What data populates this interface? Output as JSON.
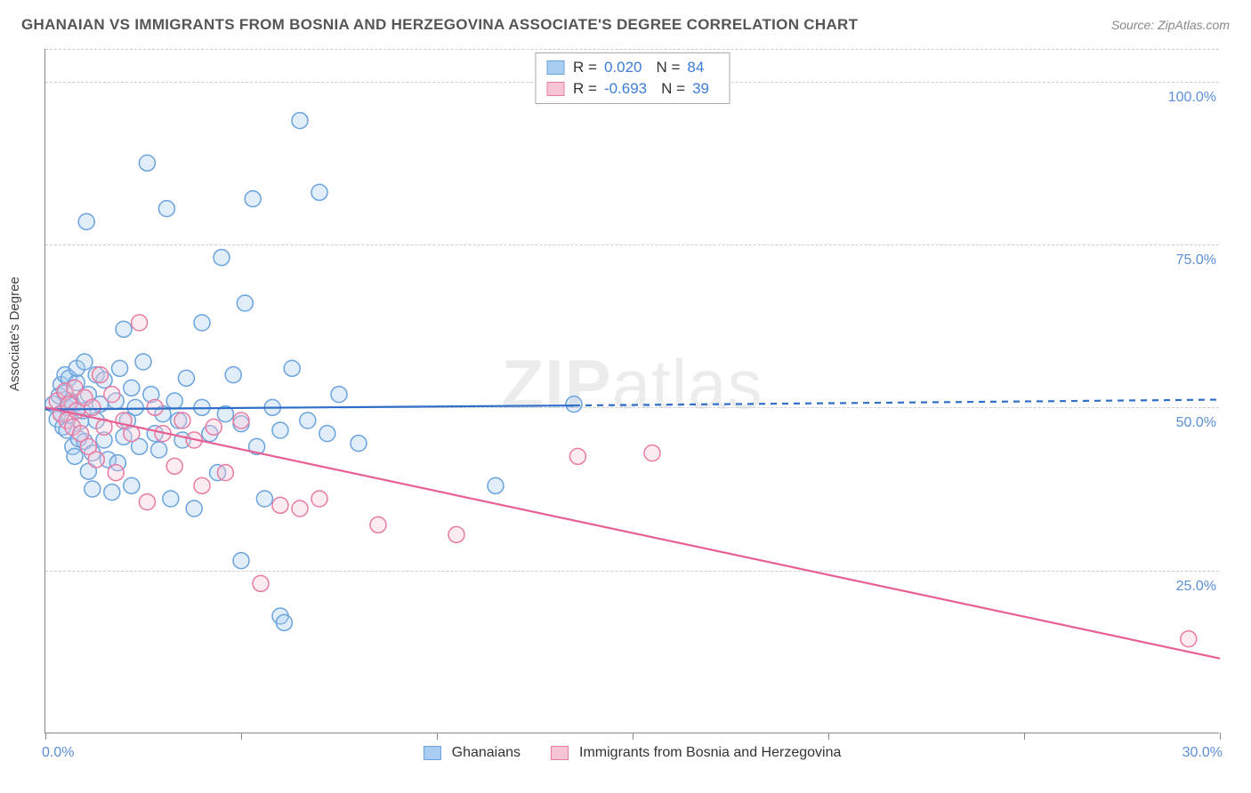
{
  "title": "GHANAIAN VS IMMIGRANTS FROM BOSNIA AND HERZEGOVINA ASSOCIATE'S DEGREE CORRELATION CHART",
  "source": "Source: ZipAtlas.com",
  "yaxis_title": "Associate's Degree",
  "watermark": "ZIPatlas",
  "chart": {
    "type": "scatter",
    "xlim": [
      0,
      30
    ],
    "ylim": [
      0,
      105
    ],
    "x_tick_positions": [
      0,
      5,
      10,
      15,
      20,
      25,
      30
    ],
    "x_label_min": "0.0%",
    "x_label_max": "30.0%",
    "y_gridlines": [
      {
        "value": 25,
        "label": "25.0%"
      },
      {
        "value": 50,
        "label": "50.0%"
      },
      {
        "value": 75,
        "label": "75.0%"
      },
      {
        "value": 100,
        "label": "100.0%"
      },
      {
        "value": 105,
        "label": ""
      }
    ],
    "marker_radius": 9,
    "marker_stroke_width": 1.5,
    "marker_fill_opacity": 0.35,
    "line_width": 2.2,
    "grid_color": "#cccccc",
    "axis_color": "#888888",
    "background_color": "#ffffff"
  },
  "series": [
    {
      "name": "Ghanaians",
      "color_fill": "#a9cdf0",
      "color_stroke": "#6aa3de",
      "line_color": "#2f6fc9",
      "r_value": "0.020",
      "n_value": "84",
      "trend": {
        "x1": 0,
        "y1": 49.7,
        "x2": 13.5,
        "y2": 50.3,
        "dash_from_x": 13.5,
        "dash_to_x": 30,
        "dash_to_y": 51.2
      },
      "points": [
        [
          0.2,
          50.5
        ],
        [
          0.3,
          48.2
        ],
        [
          0.35,
          51.8
        ],
        [
          0.4,
          53.5
        ],
        [
          0.4,
          49.1
        ],
        [
          0.45,
          47.0
        ],
        [
          0.5,
          52.2
        ],
        [
          0.5,
          55.0
        ],
        [
          0.55,
          50.0
        ],
        [
          0.55,
          46.5
        ],
        [
          0.6,
          54.5
        ],
        [
          0.6,
          48.8
        ],
        [
          0.65,
          51.0
        ],
        [
          0.7,
          50.3
        ],
        [
          0.7,
          44.0
        ],
        [
          0.75,
          42.5
        ],
        [
          0.8,
          53.8
        ],
        [
          0.8,
          56.0
        ],
        [
          0.85,
          45.2
        ],
        [
          0.9,
          47.9
        ],
        [
          0.95,
          49.5
        ],
        [
          1.0,
          44.8
        ],
        [
          1.0,
          57.0
        ],
        [
          1.05,
          78.5
        ],
        [
          1.1,
          40.2
        ],
        [
          1.1,
          52.0
        ],
        [
          1.2,
          37.5
        ],
        [
          1.2,
          43.0
        ],
        [
          1.3,
          55.0
        ],
        [
          1.3,
          48.0
        ],
        [
          1.4,
          50.5
        ],
        [
          1.5,
          45.0
        ],
        [
          1.5,
          54.2
        ],
        [
          1.6,
          42.0
        ],
        [
          1.7,
          37.0
        ],
        [
          1.8,
          51.0
        ],
        [
          1.85,
          41.5
        ],
        [
          1.9,
          56.0
        ],
        [
          2.0,
          45.5
        ],
        [
          2.0,
          62.0
        ],
        [
          2.1,
          48.0
        ],
        [
          2.2,
          38.0
        ],
        [
          2.2,
          53.0
        ],
        [
          2.3,
          50.0
        ],
        [
          2.4,
          44.0
        ],
        [
          2.5,
          57.0
        ],
        [
          2.6,
          87.5
        ],
        [
          2.7,
          52.0
        ],
        [
          2.8,
          46.0
        ],
        [
          2.9,
          43.5
        ],
        [
          3.0,
          49.0
        ],
        [
          3.1,
          80.5
        ],
        [
          3.2,
          36.0
        ],
        [
          3.3,
          51.0
        ],
        [
          3.4,
          48.0
        ],
        [
          3.5,
          45.0
        ],
        [
          3.6,
          54.5
        ],
        [
          3.8,
          34.5
        ],
        [
          4.0,
          63.0
        ],
        [
          4.0,
          50.0
        ],
        [
          4.2,
          46.0
        ],
        [
          4.4,
          40.0
        ],
        [
          4.5,
          73.0
        ],
        [
          4.6,
          49.0
        ],
        [
          4.8,
          55.0
        ],
        [
          5.0,
          47.5
        ],
        [
          5.0,
          26.5
        ],
        [
          5.1,
          66.0
        ],
        [
          5.3,
          82.0
        ],
        [
          5.4,
          44.0
        ],
        [
          5.6,
          36.0
        ],
        [
          5.8,
          50.0
        ],
        [
          6.0,
          46.5
        ],
        [
          6.0,
          18.0
        ],
        [
          6.1,
          17.0
        ],
        [
          6.3,
          56.0
        ],
        [
          6.5,
          94.0
        ],
        [
          6.7,
          48.0
        ],
        [
          7.0,
          83.0
        ],
        [
          7.2,
          46.0
        ],
        [
          7.5,
          52.0
        ],
        [
          8.0,
          44.5
        ],
        [
          11.5,
          38.0
        ],
        [
          13.5,
          50.5
        ]
      ]
    },
    {
      "name": "Immigrants from Bosnia and Herzegovina",
      "color_fill": "#f5c5d4",
      "color_stroke": "#e77ba3",
      "line_color": "#e85f94",
      "r_value": "-0.693",
      "n_value": "39",
      "trend": {
        "x1": 0,
        "y1": 50.0,
        "x2": 30,
        "y2": 11.5,
        "dash_from_x": null
      },
      "points": [
        [
          0.3,
          51.0
        ],
        [
          0.4,
          49.0
        ],
        [
          0.5,
          52.5
        ],
        [
          0.55,
          48.0
        ],
        [
          0.6,
          50.5
        ],
        [
          0.7,
          47.0
        ],
        [
          0.75,
          53.0
        ],
        [
          0.8,
          49.5
        ],
        [
          0.9,
          46.0
        ],
        [
          1.0,
          51.5
        ],
        [
          1.1,
          44.0
        ],
        [
          1.2,
          50.0
        ],
        [
          1.3,
          42.0
        ],
        [
          1.4,
          55.0
        ],
        [
          1.5,
          47.0
        ],
        [
          1.7,
          52.0
        ],
        [
          1.8,
          40.0
        ],
        [
          2.0,
          48.0
        ],
        [
          2.2,
          46.0
        ],
        [
          2.4,
          63.0
        ],
        [
          2.6,
          35.5
        ],
        [
          2.8,
          50.0
        ],
        [
          3.0,
          46.0
        ],
        [
          3.3,
          41.0
        ],
        [
          3.5,
          48.0
        ],
        [
          3.8,
          45.0
        ],
        [
          4.0,
          38.0
        ],
        [
          4.3,
          47.0
        ],
        [
          4.6,
          40.0
        ],
        [
          5.0,
          48.0
        ],
        [
          5.5,
          23.0
        ],
        [
          6.0,
          35.0
        ],
        [
          6.5,
          34.5
        ],
        [
          7.0,
          36.0
        ],
        [
          8.5,
          32.0
        ],
        [
          10.5,
          30.5
        ],
        [
          13.6,
          42.5
        ],
        [
          15.5,
          43.0
        ],
        [
          29.2,
          14.5
        ]
      ]
    }
  ],
  "legend": {
    "series1_label": "Ghanaians",
    "series2_label": "Immigrants from Bosnia and Herzegovina"
  },
  "stats_box": {
    "r_label": "R =",
    "n_label": "N ="
  }
}
